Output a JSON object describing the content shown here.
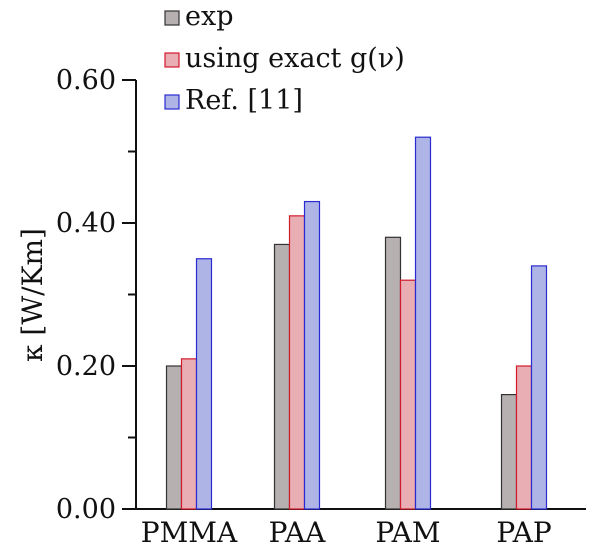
{
  "chart_data": {
    "type": "bar",
    "categories": [
      "PMMA",
      "PAA",
      "PAM",
      "PAP"
    ],
    "series": [
      {
        "name": "exp",
        "values": [
          0.2,
          0.37,
          0.38,
          0.16
        ],
        "color": "#b6b0b0",
        "stroke": "#333333"
      },
      {
        "name": "using exact g(ν)",
        "values": [
          0.21,
          0.41,
          0.32,
          0.2
        ],
        "color": "#e8aeb4",
        "stroke": "#d21a2a"
      },
      {
        "name": "Ref. [11]",
        "values": [
          0.35,
          0.43,
          0.52,
          0.34
        ],
        "color": "#aeb4e6",
        "stroke": "#2a2ad2"
      }
    ],
    "ylabel": "κ [W/Km]",
    "ylim": [
      0.0,
      0.6
    ],
    "yticks": [
      "0.00",
      "0.20",
      "0.40",
      "0.60"
    ],
    "ytick_values": [
      0.0,
      0.2,
      0.4,
      0.6
    ],
    "grid": false,
    "legend_position": "top-center"
  }
}
